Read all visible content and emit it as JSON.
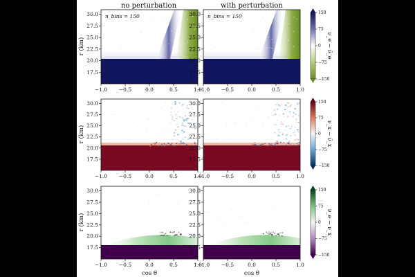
{
  "figure": {
    "column_titles": [
      "no perturbation",
      "with perturbation"
    ],
    "nbins_label": "n_bins = 150",
    "ylabel": "r (km)",
    "xlabel": "cos θ",
    "colors": {
      "background_outer": "#000000",
      "figure_bg": "#ffffff",
      "row1_low": "#6b8e23",
      "row1_high": "#11145f",
      "row2_low": "#2166ac",
      "row2_high": "#67001f",
      "row3_low": "#40004b",
      "row3_high": "#00441b"
    }
  },
  "chart_data": [
    {
      "type": "heatmap",
      "row": 1,
      "panels": [
        "no perturbation",
        "with perturbation"
      ],
      "colormap": "PiYG-like (olive to navy)",
      "xlabel": "",
      "ylabel": "r (km)",
      "xlim": [
        -1.0,
        1.0
      ],
      "ylim": [
        15.0,
        31.0
      ],
      "xticks": [
        "−1.0",
        "−0.5",
        "0.0",
        "0.5",
        "1.0"
      ],
      "yticks": [
        "17.5",
        "20.0",
        "22.5",
        "25.0",
        "27.5",
        "30.0"
      ],
      "colorbar_label": "ν_e − ν̄_e",
      "colorbar_ticks": [
        "150",
        "75",
        "0",
        "−75",
        "−150"
      ],
      "clim": [
        -150,
        150
      ],
      "features": {
        "saturated_below_r_km": 20.8,
        "value_below": 150,
        "diagonal_band_from": [
          0.2,
          20.8
        ],
        "diagonal_band_to": [
          0.7,
          31.0
        ],
        "negative_region_cos_theta_above": 0.65
      }
    },
    {
      "type": "heatmap",
      "row": 2,
      "panels": [
        "no perturbation",
        "with perturbation"
      ],
      "colormap": "RdBu-like (blue to red)",
      "xlabel": "",
      "ylabel": "r (km)",
      "xlim": [
        -1.0,
        1.0
      ],
      "ylim": [
        15.0,
        31.0
      ],
      "xticks": [
        "−1.0",
        "−0.5",
        "0.0",
        "0.5",
        "1.0"
      ],
      "yticks": [
        "17.5",
        "20.0",
        "22.5",
        "25.0",
        "27.5",
        "30.0"
      ],
      "colorbar_label": "ν_x − ν̄_x",
      "colorbar_ticks": [
        "150",
        "75",
        "0",
        "−75",
        "−150"
      ],
      "clim": [
        -150,
        150
      ],
      "features": {
        "saturated_below_r_km": 20.8,
        "value_below": 150,
        "speckle_region_cos_theta_above": 0.3
      }
    },
    {
      "type": "heatmap",
      "row": 3,
      "panels": [
        "no perturbation",
        "with perturbation"
      ],
      "colormap": "PRGn-like (purple to green)",
      "xlabel": "cos θ",
      "ylabel": "r (km)",
      "xlim": [
        -1.0,
        1.0
      ],
      "ylim": [
        15.0,
        31.0
      ],
      "xticks": [
        "−1.0",
        "−0.5",
        "0.0",
        "0.5",
        "1.0"
      ],
      "yticks": [
        "17.5",
        "20.0",
        "22.5",
        "25.0",
        "27.5",
        "30.0"
      ],
      "colorbar_label": "ν_e − ν_x",
      "colorbar_ticks": [
        "150",
        "75",
        "0",
        "−75",
        "−150"
      ],
      "clim": [
        -150,
        150
      ],
      "features": {
        "saturated_below_r_km": 18.5,
        "value_below": -150,
        "green_band_r_km": [
          18.5,
          20.5
        ],
        "speckle_at": [
          0.6,
          21.0
        ]
      }
    }
  ]
}
